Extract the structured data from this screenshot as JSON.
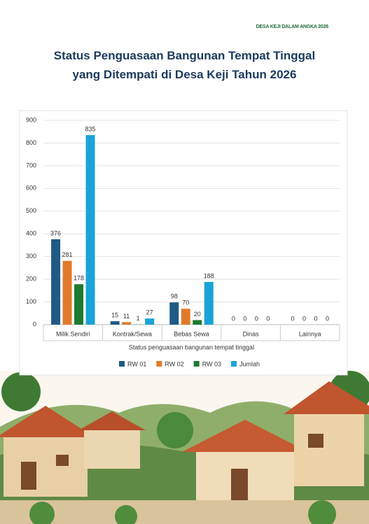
{
  "header": "DESA KEJI DALAM ANGKA 2026",
  "chart_data": {
    "type": "bar",
    "title": "Status Penguasaan Bangunan Tempat Tinggal yang Ditempati di Desa Keji Tahun 2026",
    "x_label": "Status penguasaan bangunan tempat tinggal",
    "categories": [
      "Milik Sendiri",
      "Kontrak/Sewa",
      "Bebas Sewa",
      "Dinas",
      "Lainnya"
    ],
    "series": [
      {
        "name": "RW 01",
        "color": "#1f5a85",
        "values": [
          376,
          15,
          98,
          0,
          0
        ]
      },
      {
        "name": "RW 02",
        "color": "#e07a2a",
        "values": [
          281,
          11,
          70,
          0,
          0
        ]
      },
      {
        "name": "RW 03",
        "color": "#1e7a2e",
        "values": [
          178,
          1,
          20,
          0,
          0
        ]
      },
      {
        "name": "Jumlah",
        "color": "#1aa3d8",
        "values": [
          835,
          27,
          188,
          0,
          0
        ]
      }
    ],
    "ylim": [
      0,
      900
    ],
    "yticks": [
      0,
      100,
      200,
      300,
      400,
      500,
      600,
      700,
      800,
      900
    ],
    "grid": true,
    "legend": "bottom"
  }
}
